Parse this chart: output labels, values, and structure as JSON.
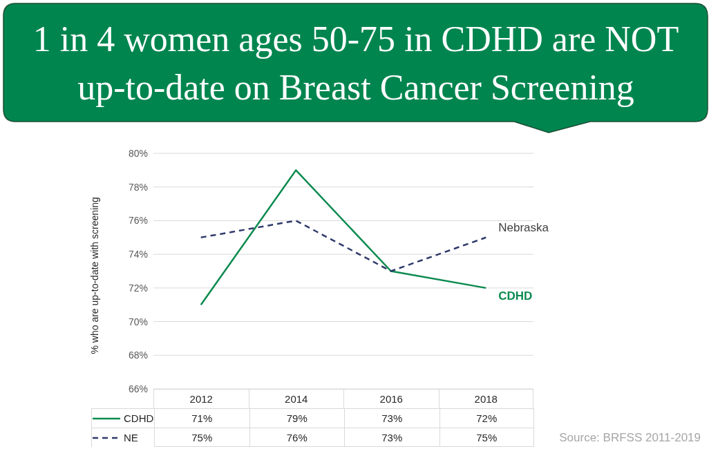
{
  "chart_data": {
    "type": "line",
    "title": "1 in 4 women ages 50-75 in CDHD are NOT up-to-date on Breast Cancer Screening",
    "ylabel": "% who are up-to-date with screening",
    "categories": [
      "2012",
      "2014",
      "2016",
      "2018"
    ],
    "series": [
      {
        "name": "CDHD",
        "color": "#0b8a4e",
        "line_style": "solid",
        "values": [
          71,
          79,
          73,
          72
        ]
      },
      {
        "name": "NE",
        "color": "#2f3a6b",
        "line_style": "dashed",
        "values": [
          75,
          76,
          73,
          75
        ]
      }
    ],
    "value_labels": [
      [
        "71%",
        "79%",
        "73%",
        "72%"
      ],
      [
        "75%",
        "76%",
        "73%",
        "75%"
      ]
    ],
    "ylim": [
      66,
      80
    ],
    "yticks": [
      {
        "value": 66,
        "label": "66%"
      },
      {
        "value": 68,
        "label": "68%"
      },
      {
        "value": 70,
        "label": "70%"
      },
      {
        "value": 72,
        "label": "72%"
      },
      {
        "value": 74,
        "label": "74%"
      },
      {
        "value": 76,
        "label": "76%"
      },
      {
        "value": 78,
        "label": "78%"
      },
      {
        "value": 80,
        "label": "80%"
      }
    ],
    "grid": "y",
    "legend": "bottom",
    "marker": "none",
    "annotations": [
      {
        "text": "Nebraska",
        "x": "2018",
        "y": 75
      },
      {
        "text": "CDHD",
        "x": "2018",
        "y": 72
      },
      "Source: BRFSS 2011-2019"
    ]
  }
}
